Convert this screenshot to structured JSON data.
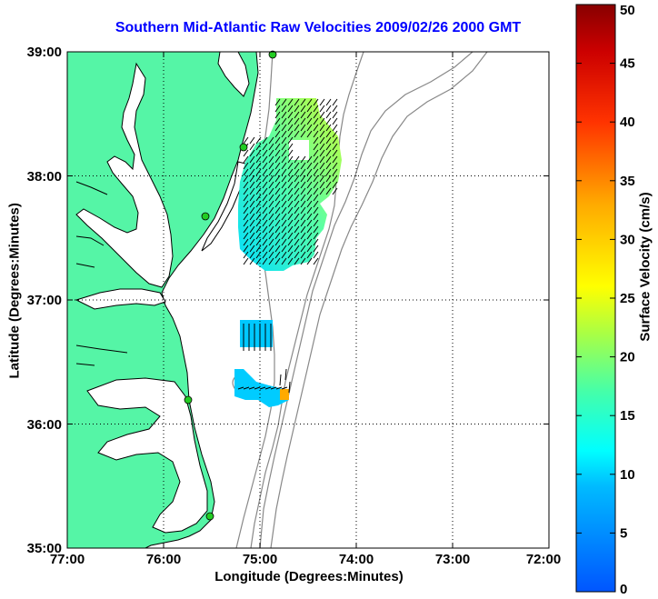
{
  "title": "Southern Mid-Atlantic Raw Velocities 2009/02/26 2000 GMT",
  "xlabel": "Longitude (Degrees:Minutes)",
  "ylabel": "Latitude (Degrees:Minutes)",
  "colorbar_label": "Surface Velocity (cm/s)",
  "x_ticks": [
    "77:00",
    "76:00",
    "75:00",
    "74:00",
    "73:00",
    "72:00"
  ],
  "y_ticks": [
    "39:00",
    "38:00",
    "37:00",
    "36:00",
    "35:00"
  ],
  "colorbar_ticks": [
    "50",
    "45",
    "40",
    "35",
    "30",
    "25",
    "20",
    "15",
    "10",
    "5",
    "0"
  ],
  "colors": {
    "title": "#0000ff",
    "land": "#55f5a6",
    "station": "#22cc22",
    "bathymetry": "#888888"
  },
  "map": {
    "lon_range": [
      -77,
      -72
    ],
    "lat_range": [
      35,
      39
    ],
    "colorbar_range": [
      0,
      50
    ],
    "stations_lat": [
      39.0,
      38.2,
      37.5,
      36.15,
      35.28
    ]
  }
}
